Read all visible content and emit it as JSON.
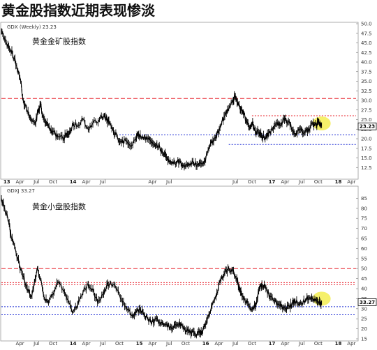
{
  "page": {
    "title": "黄金股指数近期表现惨淡"
  },
  "colors": {
    "price": "#000000",
    "resistance": "#e8202a",
    "support": "#1a2ad4",
    "highlight": "#f4ee5a",
    "frame": "#9a9a9a"
  },
  "chart_data": [
    {
      "type": "line",
      "id": "gdx",
      "header": "GDX (Weekly) 23.23",
      "label": "黄金金矿股指数",
      "last_value": "23.23",
      "ylim": [
        10,
        50
      ],
      "y_ticks": [
        "12.5",
        "15.0",
        "17.5",
        "20.0",
        "22.5",
        "25.0",
        "27.5",
        "30.0",
        "32.5",
        "35.0",
        "37.5",
        "40.0",
        "42.5",
        "45.0",
        "47.5",
        "50.0"
      ],
      "x_ticks": [
        {
          "label": "13",
          "x": 2013.0,
          "bold": true
        },
        {
          "label": "Apr",
          "x": 2013.25
        },
        {
          "label": "Jul",
          "x": 2013.5
        },
        {
          "label": "Oct",
          "x": 2013.75
        },
        {
          "label": "14",
          "x": 2014.0,
          "bold": true
        },
        {
          "label": "Apr",
          "x": 2014.25
        },
        {
          "label": "Jul",
          "x": 2014.5
        },
        {
          "label": "Apr",
          "x": 2015.25
        },
        {
          "label": "Jul",
          "x": 2015.5
        },
        {
          "label": "Jul",
          "x": 2016.5
        },
        {
          "label": "Oct",
          "x": 2016.75
        },
        {
          "label": "17",
          "x": 2017.0,
          "bold": true
        },
        {
          "label": "Apr",
          "x": 2017.25
        },
        {
          "label": "Jul",
          "x": 2017.5
        },
        {
          "label": "Oct",
          "x": 2017.75
        },
        {
          "label": "18",
          "x": 2018.0,
          "bold": true
        },
        {
          "label": "Apr",
          "x": 2018.25
        }
      ],
      "xlim": [
        2012.97,
        2018.32
      ],
      "series": [
        {
          "x": [
            2012.97,
            2013.02,
            2013.08,
            2013.14,
            2013.2,
            2013.25,
            2013.3,
            2013.36,
            2013.42,
            2013.48,
            2013.52,
            2013.56,
            2013.6,
            2013.65,
            2013.7,
            2013.75,
            2013.82,
            2013.9,
            2013.95,
            2014.0,
            2014.05,
            2014.12,
            2014.2,
            2014.28,
            2014.35,
            2014.45,
            2014.52,
            2014.56,
            2014.6,
            2014.66,
            2014.72,
            2014.78,
            2014.85,
            2014.92,
            2015.0,
            2015.04,
            2015.1,
            2015.16,
            2015.22,
            2015.28,
            2015.34,
            2015.4,
            2015.45,
            2015.5,
            2015.56,
            2015.62,
            2015.68,
            2015.74,
            2015.8,
            2015.86,
            2015.92,
            2015.98,
            2016.04,
            2016.1,
            2016.16,
            2016.22,
            2016.28,
            2016.34,
            2016.4,
            2016.46,
            2016.5,
            2016.54,
            2016.58,
            2016.62,
            2016.67,
            2016.72,
            2016.76,
            2016.8,
            2016.86,
            2016.9,
            2016.96,
            2017.0,
            2017.06,
            2017.12,
            2017.18,
            2017.24,
            2017.3,
            2017.36,
            2017.42,
            2017.48,
            2017.54,
            2017.6,
            2017.66,
            2017.72,
            2017.76,
            2017.8
          ],
          "values": [
            48,
            46,
            44,
            42,
            39,
            36,
            30,
            27,
            25,
            24,
            27,
            29,
            25.5,
            24,
            22.5,
            22,
            20.5,
            20,
            21,
            22,
            24,
            23.5,
            25,
            22.5,
            24,
            25,
            26,
            25,
            24,
            22,
            20.5,
            19,
            19.5,
            18,
            20,
            21,
            20.5,
            20.5,
            19.5,
            18.5,
            18,
            16.5,
            15.5,
            14,
            13.5,
            14,
            13.5,
            13,
            13.5,
            14,
            13,
            13.5,
            14,
            17.5,
            19.5,
            21,
            23.5,
            26,
            28,
            30,
            31,
            29,
            27.5,
            26.5,
            24.5,
            23,
            24.5,
            22,
            21.5,
            20.5,
            20.5,
            21.5,
            22.5,
            24,
            23.5,
            25,
            24.5,
            22,
            21.5,
            22.5,
            21.5,
            22.5,
            24,
            23.5,
            24.5,
            23.5
          ]
        }
      ],
      "lines": [
        {
          "kind": "resistance",
          "value": 30.5,
          "style": "long"
        },
        {
          "kind": "resistance",
          "value": 26.0,
          "style": "dotted",
          "x_from": 2016.75
        },
        {
          "kind": "support",
          "value": 21.0,
          "style": "dotted",
          "x_from": 2014.75
        },
        {
          "kind": "support",
          "value": 18.5,
          "style": "dotted",
          "x_from": 2016.4
        }
      ],
      "highlight": {
        "x": 2017.8,
        "y": 24
      }
    },
    {
      "type": "line",
      "id": "gdxj",
      "header": "GDXJ 33.27",
      "label": "黄金小盘股指数",
      "last_value": "33.27",
      "ylim": [
        15,
        90
      ],
      "y_ticks": [
        "15",
        "20",
        "25",
        "30",
        "35",
        "40",
        "45",
        "50",
        "55",
        "60",
        "65",
        "70",
        "75",
        "80",
        "85"
      ],
      "x_ticks": [
        {
          "label": "Apr",
          "x": 2013.25
        },
        {
          "label": "Jul",
          "x": 2013.5
        },
        {
          "label": "Oct",
          "x": 2013.75
        },
        {
          "label": "14",
          "x": 2014.0,
          "bold": true
        },
        {
          "label": "Apr",
          "x": 2014.25
        },
        {
          "label": "Jul",
          "x": 2014.5
        },
        {
          "label": "Oct",
          "x": 2014.75
        },
        {
          "label": "15",
          "x": 2015.0,
          "bold": true
        },
        {
          "label": "Apr",
          "x": 2015.25
        },
        {
          "label": "Jul",
          "x": 2015.5
        },
        {
          "label": "Oct",
          "x": 2015.75
        },
        {
          "label": "16",
          "x": 2016.0,
          "bold": true
        },
        {
          "label": "Apr",
          "x": 2016.25
        },
        {
          "label": "Jul",
          "x": 2016.5
        },
        {
          "label": "Oct",
          "x": 2016.75
        },
        {
          "label": "17",
          "x": 2017.0,
          "bold": true
        },
        {
          "label": "Apr",
          "x": 2017.25
        },
        {
          "label": "Jul",
          "x": 2017.5
        },
        {
          "label": "Oct",
          "x": 2017.75
        },
        {
          "label": "18",
          "x": 2018.0,
          "bold": true
        },
        {
          "label": "Apr",
          "x": 2018.25
        }
      ],
      "xlim": [
        2012.97,
        2018.32
      ],
      "series": [
        {
          "x": [
            2012.97,
            2013.02,
            2013.08,
            2013.12,
            2013.18,
            2013.24,
            2013.3,
            2013.36,
            2013.42,
            2013.48,
            2013.52,
            2013.58,
            2013.62,
            2013.68,
            2013.75,
            2013.82,
            2013.9,
            2013.96,
            2014.04,
            2014.12,
            2014.2,
            2014.28,
            2014.35,
            2014.42,
            2014.5,
            2014.56,
            2014.62,
            2014.7,
            2014.78,
            2014.86,
            2014.94,
            2015.0,
            2015.06,
            2015.12,
            2015.18,
            2015.24,
            2015.3,
            2015.36,
            2015.42,
            2015.48,
            2015.54,
            2015.6,
            2015.66,
            2015.72,
            2015.78,
            2015.84,
            2015.9,
            2015.96,
            2016.0,
            2016.04,
            2016.1,
            2016.16,
            2016.22,
            2016.28,
            2016.34,
            2016.4,
            2016.46,
            2016.52,
            2016.56,
            2016.6,
            2016.66,
            2016.72,
            2016.78,
            2016.82,
            2016.86,
            2016.9,
            2016.96,
            2017.02,
            2017.08,
            2017.14,
            2017.2,
            2017.26,
            2017.32,
            2017.36,
            2017.4,
            2017.46,
            2017.52,
            2017.58,
            2017.64,
            2017.7,
            2017.76,
            2017.8
          ],
          "values": [
            85,
            80,
            73,
            65,
            60,
            52,
            46,
            40,
            36,
            45,
            50,
            42,
            35,
            33,
            37,
            43,
            40,
            35,
            28,
            32,
            38,
            42,
            40,
            33,
            37,
            42,
            43,
            40,
            35,
            30,
            27,
            28,
            30,
            27,
            25,
            23,
            25,
            23,
            22,
            21,
            20,
            22,
            23,
            20,
            19,
            18,
            17,
            18,
            18,
            22,
            27,
            33,
            38,
            44,
            48,
            50,
            49,
            45,
            40,
            36,
            33,
            31,
            30,
            34,
            40,
            42,
            40,
            36,
            34,
            32,
            31,
            30,
            31,
            33,
            34,
            32,
            33,
            36,
            35,
            34,
            33,
            33
          ]
        }
      ],
      "lines": [
        {
          "kind": "resistance",
          "value": 50.0,
          "style": "long"
        },
        {
          "kind": "resistance",
          "value": 43.0,
          "style": "dotted"
        },
        {
          "kind": "resistance",
          "value": 42.0,
          "style": "dotted"
        },
        {
          "kind": "support",
          "value": 31.0,
          "style": "dotted"
        },
        {
          "kind": "support",
          "value": 27.0,
          "style": "dotted"
        }
      ],
      "highlight": {
        "x": 2017.8,
        "y": 35
      }
    }
  ]
}
